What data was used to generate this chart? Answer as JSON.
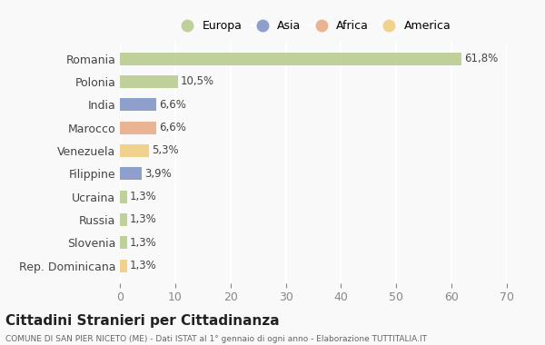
{
  "countries": [
    "Romania",
    "Polonia",
    "India",
    "Marocco",
    "Venezuela",
    "Filippine",
    "Ucraina",
    "Russia",
    "Slovenia",
    "Rep. Dominicana"
  ],
  "values": [
    61.8,
    10.5,
    6.6,
    6.6,
    5.3,
    3.9,
    1.3,
    1.3,
    1.3,
    1.3
  ],
  "labels": [
    "61,8%",
    "10,5%",
    "6,6%",
    "6,6%",
    "5,3%",
    "3,9%",
    "1,3%",
    "1,3%",
    "1,3%",
    "1,3%"
  ],
  "colors": [
    "#b5c98a",
    "#b5c98a",
    "#7b8fc4",
    "#e8a882",
    "#f0cc7a",
    "#7b8fc4",
    "#b5c98a",
    "#b5c98a",
    "#b5c98a",
    "#f0cc7a"
  ],
  "legend_labels": [
    "Europa",
    "Asia",
    "Africa",
    "America"
  ],
  "legend_colors": [
    "#b5c98a",
    "#7b8fc4",
    "#e8a882",
    "#f0cc7a"
  ],
  "title": "Cittadini Stranieri per Cittadinanza",
  "subtitle": "COMUNE DI SAN PIER NICETO (ME) - Dati ISTAT al 1° gennaio di ogni anno - Elaborazione TUTTITALIA.IT",
  "xlim": [
    0,
    70
  ],
  "xticks": [
    0,
    10,
    20,
    30,
    40,
    50,
    60,
    70
  ],
  "background_color": "#f9f9f9",
  "grid_color": "#ffffff",
  "bar_alpha": 0.85
}
